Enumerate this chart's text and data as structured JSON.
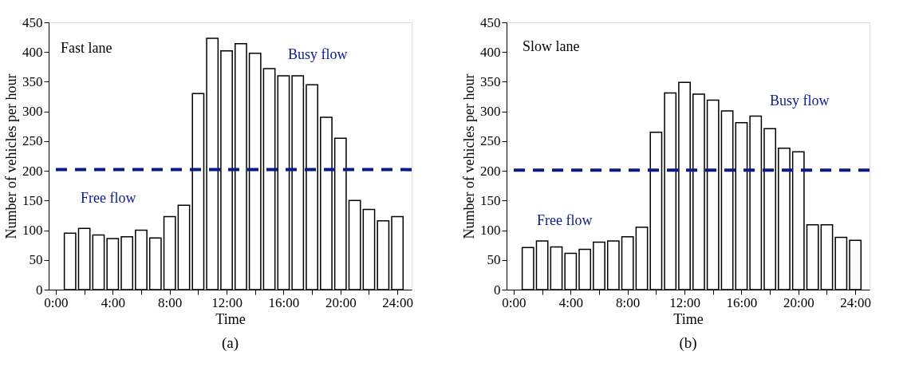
{
  "chart_data": [
    {
      "type": "bar",
      "title": "(a)",
      "xlabel": "Time",
      "ylabel": "Number of vehicles per hour",
      "annotations": [
        "Fast lane",
        "Busy flow",
        "Free flow"
      ],
      "x": [
        1,
        2,
        3,
        4,
        5,
        6,
        7,
        8,
        9,
        10,
        11,
        12,
        13,
        14,
        15,
        16,
        17,
        18,
        19,
        20,
        21,
        22,
        23,
        24
      ],
      "series": [
        {
          "color": "#ffffff",
          "values": [
            95,
            103,
            92,
            86,
            89,
            100,
            87,
            123,
            142,
            330,
            423,
            402,
            414,
            398,
            372,
            360,
            360,
            345,
            290,
            255,
            150,
            135,
            116,
            123
          ]
        }
      ],
      "xlim": [
        -0.5,
        25
      ],
      "xticks": [
        {
          "value": 0,
          "label": "0:00"
        },
        {
          "value": 2,
          "label": null
        },
        {
          "value": 4,
          "label": "4:00"
        },
        {
          "value": 6,
          "label": null
        },
        {
          "value": 8,
          "label": "8:00"
        },
        {
          "value": 10,
          "label": null
        },
        {
          "value": 12,
          "label": "12:00"
        },
        {
          "value": 14,
          "label": null
        },
        {
          "value": 16,
          "label": "16:00"
        },
        {
          "value": 18,
          "label": null
        },
        {
          "value": 20,
          "label": "20:00"
        },
        {
          "value": 22,
          "label": null
        },
        {
          "value": 24,
          "label": "24:00"
        }
      ],
      "ylim": [
        0,
        450
      ],
      "yticks": [
        0,
        50,
        100,
        150,
        200,
        250,
        300,
        350,
        400,
        450
      ],
      "ref_lines": [
        {
          "axis": "y",
          "value": 202,
          "color": "#0a1a8a",
          "line_style": "dashed"
        }
      ],
      "grid": false
    },
    {
      "type": "bar",
      "title": "(b)",
      "xlabel": "Time",
      "ylabel": "Number of vehicles per hour",
      "annotations": [
        "Slow lane",
        "Busy flow",
        "Free flow"
      ],
      "x": [
        1,
        2,
        3,
        4,
        5,
        6,
        7,
        8,
        9,
        10,
        11,
        12,
        13,
        14,
        15,
        16,
        17,
        18,
        19,
        20,
        21,
        22,
        23,
        24
      ],
      "series": [
        {
          "color": "#ffffff",
          "values": [
            71,
            82,
            72,
            61,
            68,
            80,
            82,
            89,
            105,
            265,
            331,
            349,
            329,
            319,
            301,
            281,
            292,
            271,
            238,
            232,
            109,
            109,
            88,
            83
          ]
        }
      ],
      "xlim": [
        -0.5,
        25
      ],
      "xticks": [
        {
          "value": 0,
          "label": "0:00"
        },
        {
          "value": 2,
          "label": null
        },
        {
          "value": 4,
          "label": "4:00"
        },
        {
          "value": 6,
          "label": null
        },
        {
          "value": 8,
          "label": "8:00"
        },
        {
          "value": 10,
          "label": null
        },
        {
          "value": 12,
          "label": "12:00"
        },
        {
          "value": 14,
          "label": null
        },
        {
          "value": 16,
          "label": "16:00"
        },
        {
          "value": 18,
          "label": null
        },
        {
          "value": 20,
          "label": "20:00"
        },
        {
          "value": 22,
          "label": null
        },
        {
          "value": 24,
          "label": "24:00"
        }
      ],
      "ylim": [
        0,
        450
      ],
      "yticks": [
        0,
        50,
        100,
        150,
        200,
        250,
        300,
        350,
        400,
        450
      ],
      "ref_lines": [
        {
          "axis": "y",
          "value": 201,
          "color": "#0a1a8a",
          "line_style": "dashed"
        }
      ],
      "grid": false
    }
  ]
}
